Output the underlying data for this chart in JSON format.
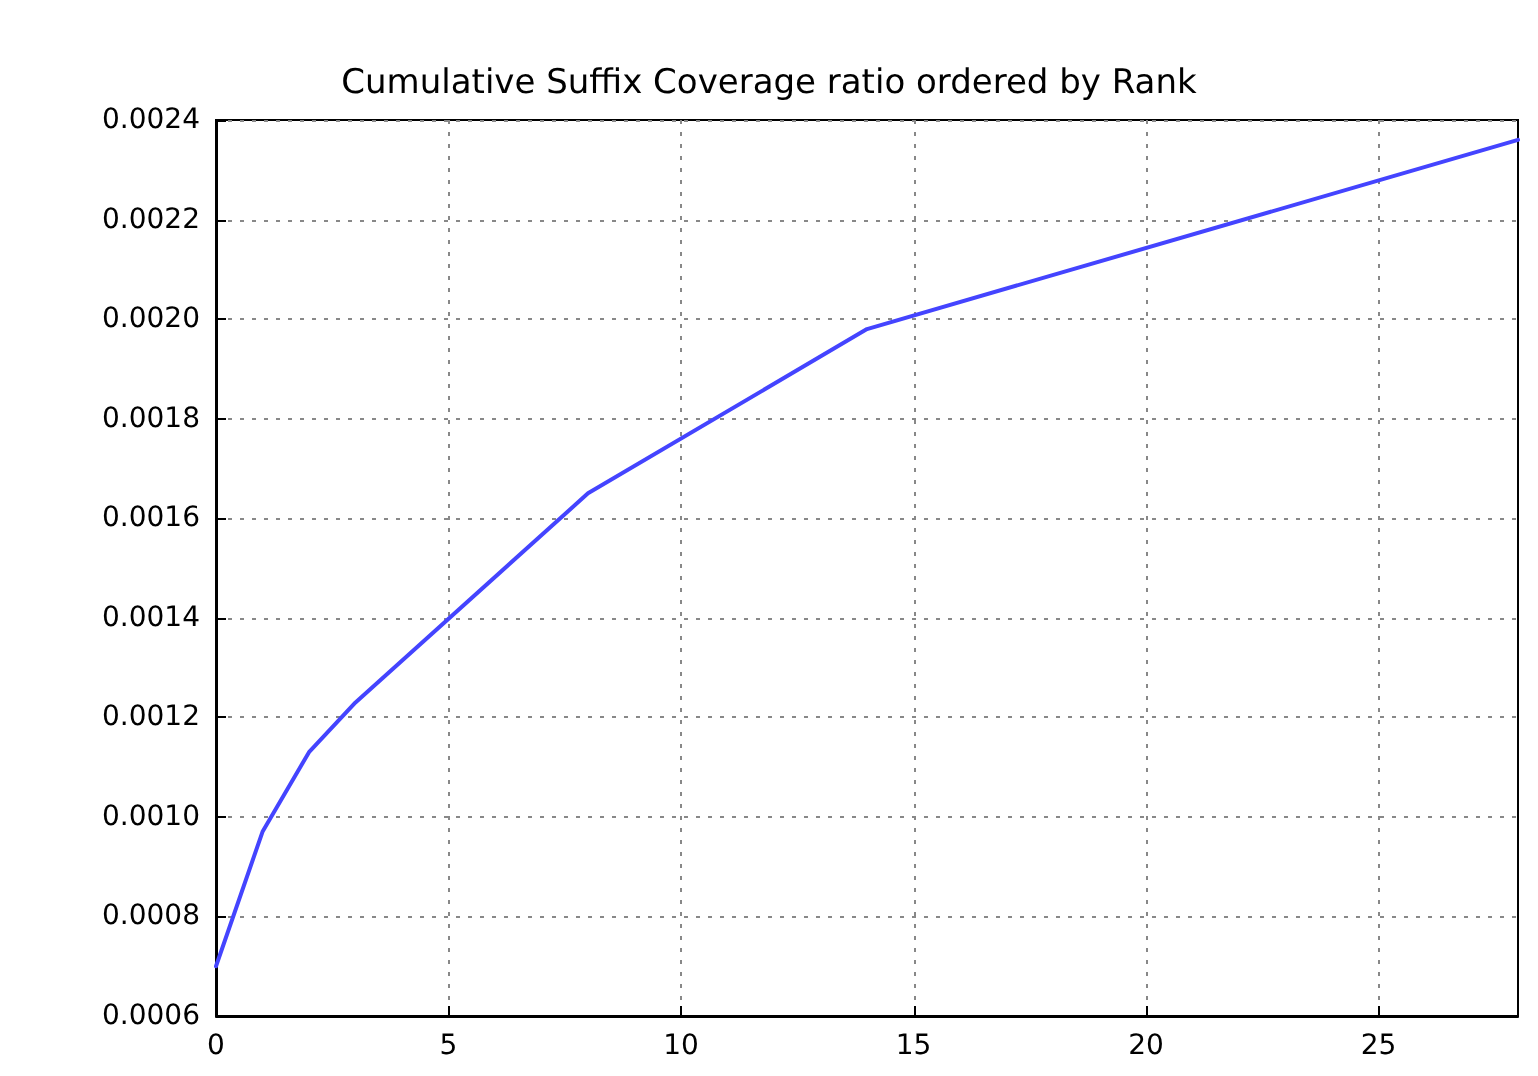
{
  "chart_data": {
    "type": "line",
    "title": "Cumulative Suffix Coverage ratio ordered by Rank",
    "x": [
      0,
      1,
      2,
      3,
      8,
      14,
      28
    ],
    "series": [
      {
        "color": "#4444ff",
        "values": [
          0.0007,
          0.00097,
          0.00113,
          0.00123,
          0.00165,
          0.00198,
          0.00236
        ]
      }
    ],
    "xlim": [
      0,
      28
    ],
    "xticks": [
      0,
      5,
      10,
      15,
      20,
      25
    ],
    "ylim": [
      0.0006,
      0.0024
    ],
    "yticks": [
      {
        "value": 0.0006,
        "label": "0.0006"
      },
      {
        "value": 0.0008,
        "label": "0.0008"
      },
      {
        "value": 0.001,
        "label": "0.0010"
      },
      {
        "value": 0.0012,
        "label": "0.0012"
      },
      {
        "value": 0.0014,
        "label": "0.0014"
      },
      {
        "value": 0.0016,
        "label": "0.0016"
      },
      {
        "value": 0.0018,
        "label": "0.0018"
      },
      {
        "value": 0.002,
        "label": "0.0020"
      },
      {
        "value": 0.0022,
        "label": "0.0022"
      },
      {
        "value": 0.0024,
        "label": "0.0024"
      }
    ],
    "grid": true,
    "marker": "none",
    "line_style": "solid"
  }
}
